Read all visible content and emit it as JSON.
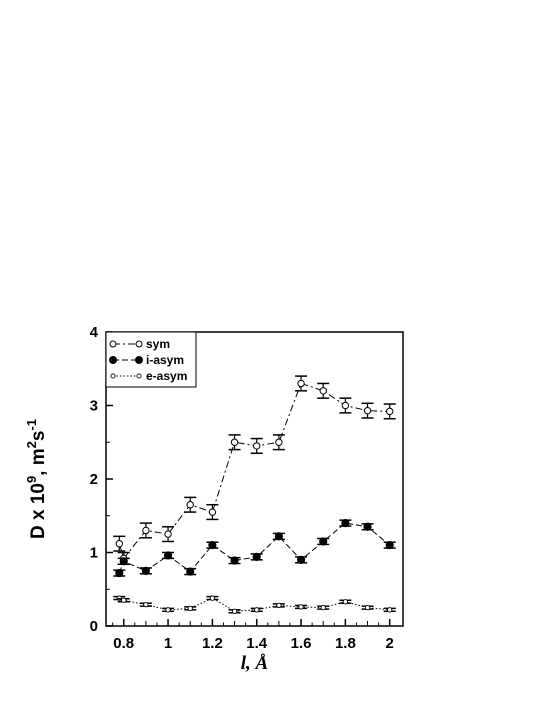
{
  "chart_data": {
    "type": "line",
    "title": "",
    "xlabel": "l, Å",
    "ylabel": {
      "prefix": "D x 10",
      "exp": "9",
      "mid": ",  m",
      "exp2": "2",
      "mid2": "s",
      "exp3": "-1"
    },
    "xlim": [
      0.72,
      2.06
    ],
    "ylim": [
      0,
      4
    ],
    "xticks": [
      0.8,
      1,
      1.2,
      1.4,
      1.6,
      1.8,
      2
    ],
    "xtick_labels": [
      "0.8",
      "1",
      "1.2",
      "1.4",
      "1.6",
      "1.8",
      "2"
    ],
    "yticks": [
      0,
      1,
      2,
      3,
      4
    ],
    "ytick_labels": [
      "0",
      "1",
      "2",
      "3",
      "4"
    ],
    "grid": false,
    "legend_position": "top-left",
    "series": [
      {
        "name": "sym",
        "marker": "open-circle",
        "line": "dash-dot",
        "x": [
          0.78,
          0.8,
          0.9,
          1.0,
          1.1,
          1.2,
          1.3,
          1.4,
          1.5,
          1.6,
          1.7,
          1.8,
          1.9,
          2.0
        ],
        "y": [
          1.12,
          0.92,
          1.3,
          1.25,
          1.65,
          1.55,
          2.5,
          2.45,
          2.5,
          3.3,
          3.2,
          3.0,
          2.93,
          2.92
        ],
        "err": [
          0.1,
          0.08,
          0.1,
          0.1,
          0.1,
          0.1,
          0.1,
          0.1,
          0.1,
          0.1,
          0.1,
          0.1,
          0.1,
          0.1
        ]
      },
      {
        "name": "i-asym",
        "marker": "filled-circle",
        "line": "dash",
        "x": [
          0.78,
          0.8,
          0.9,
          1.0,
          1.1,
          1.2,
          1.3,
          1.4,
          1.5,
          1.6,
          1.7,
          1.8,
          1.9,
          2.0
        ],
        "y": [
          0.72,
          0.88,
          0.75,
          0.96,
          0.74,
          1.1,
          0.89,
          0.94,
          1.22,
          0.9,
          1.15,
          1.4,
          1.35,
          1.1
        ],
        "err": [
          0.04,
          0.04,
          0.04,
          0.04,
          0.04,
          0.04,
          0.04,
          0.04,
          0.04,
          0.04,
          0.04,
          0.04,
          0.04,
          0.04
        ]
      },
      {
        "name": "e-asym",
        "marker": "small-circle",
        "line": "dotted",
        "x": [
          0.78,
          0.8,
          0.9,
          1.0,
          1.1,
          1.2,
          1.3,
          1.4,
          1.5,
          1.6,
          1.7,
          1.8,
          1.9,
          2.0
        ],
        "y": [
          0.38,
          0.35,
          0.29,
          0.22,
          0.24,
          0.38,
          0.2,
          0.22,
          0.28,
          0.26,
          0.25,
          0.33,
          0.25,
          0.22
        ],
        "err": [
          0.02,
          0.02,
          0.02,
          0.02,
          0.02,
          0.02,
          0.02,
          0.02,
          0.02,
          0.02,
          0.02,
          0.02,
          0.02,
          0.02
        ]
      }
    ]
  }
}
